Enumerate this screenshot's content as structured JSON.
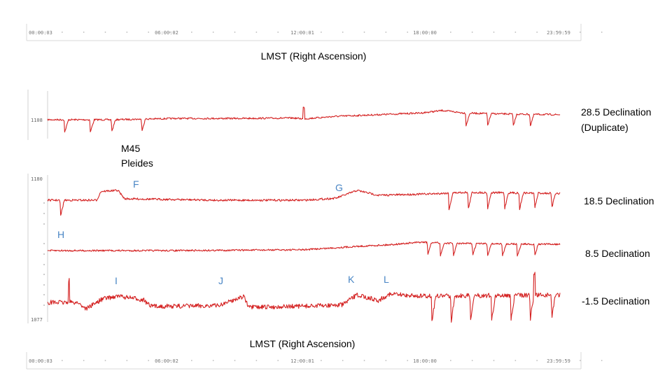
{
  "chart_data": {
    "type": "line",
    "title": "",
    "xlabel_top": "LMST (Right Ascension)",
    "xlabel_bottom": "LMST (Right Ascension)",
    "x_ticks": [
      "00:00:03",
      "06:00:02",
      "12:00:01",
      "18:00:00",
      "23:59:59"
    ],
    "x_range_hours": [
      0,
      24
    ],
    "y_tick_labels": [
      "1108",
      "1180",
      "1077"
    ],
    "grid": false,
    "color": "#d42222",
    "series": [
      {
        "name": "28.5 Declination (Duplicate)",
        "label_lines": [
          "28.5 Declination",
          "(Duplicate)"
        ],
        "points": [
          [
            0,
            0
          ],
          [
            3,
            0
          ],
          [
            6,
            0.3
          ],
          [
            9,
            0.3
          ],
          [
            11.5,
            0.4
          ],
          [
            12,
            0.2
          ],
          [
            13.5,
            0.8
          ],
          [
            15.5,
            1.2
          ],
          [
            17.5,
            1.6
          ],
          [
            18.5,
            2.2
          ],
          [
            19.5,
            1.6
          ],
          [
            21,
            1.4
          ],
          [
            24,
            1.2
          ]
        ],
        "spike_up_at": [
          12.0
        ],
        "dips_at": [
          0.8,
          2.0,
          3.0,
          4.4,
          19.6,
          20.6,
          21.8,
          22.6
        ]
      },
      {
        "name": "18.5 Declination",
        "points": [
          [
            0,
            0
          ],
          [
            2.3,
            0
          ],
          [
            2.5,
            1.8
          ],
          [
            3.3,
            2.0
          ],
          [
            3.6,
            0.3
          ],
          [
            8,
            0
          ],
          [
            12,
            0
          ],
          [
            13.5,
            0.4
          ],
          [
            14.5,
            2.0
          ],
          [
            15.5,
            1.0
          ],
          [
            18,
            1.3
          ],
          [
            19.5,
            1.6
          ],
          [
            24,
            1.4
          ]
        ],
        "dips_at": [
          0.6,
          18.8,
          19.7,
          20.6,
          21.4,
          22.1,
          22.8,
          23.6
        ]
      },
      {
        "name": "8.5 Declination",
        "points": [
          [
            0,
            0
          ],
          [
            6,
            0
          ],
          [
            12,
            0.2
          ],
          [
            14.5,
            1.0
          ],
          [
            16,
            1.4
          ],
          [
            17.5,
            2.0
          ],
          [
            19,
            1.7
          ],
          [
            24,
            1.5
          ]
        ],
        "dips_at": [
          17.8,
          18.4,
          19.0,
          19.9,
          20.6,
          21.3,
          22.0,
          22.8
        ]
      },
      {
        "name": "-1.5 Declination",
        "points": [
          [
            0,
            0
          ],
          [
            1.4,
            0
          ],
          [
            1.8,
            -1.0
          ],
          [
            2.6,
            0.6
          ],
          [
            3.3,
            1.0
          ],
          [
            4.5,
            0.4
          ],
          [
            4.8,
            -0.6
          ],
          [
            6,
            -0.6
          ],
          [
            8,
            -0.5
          ],
          [
            8.8,
            0.5
          ],
          [
            9.2,
            1.0
          ],
          [
            9.4,
            -0.8
          ],
          [
            12,
            -0.6
          ],
          [
            13.8,
            -0.4
          ],
          [
            14.5,
            1.2
          ],
          [
            15.5,
            0.3
          ],
          [
            16,
            1.3
          ],
          [
            17.5,
            1.0
          ],
          [
            24,
            1.2
          ]
        ],
        "spike_up_at": [
          1.0,
          22.8
        ],
        "dips_at": [
          18.0,
          18.9,
          19.8,
          20.8,
          21.7,
          22.6,
          23.6
        ]
      }
    ],
    "annotations": {
      "group_label": [
        "M45",
        "Pleides"
      ],
      "markers": [
        {
          "text": "F",
          "x_hours": 3.0,
          "row": 1
        },
        {
          "text": "G",
          "x_hours": 13.8,
          "row": 1
        },
        {
          "text": "H",
          "x_hours": 0.4,
          "row": 2
        },
        {
          "text": "I",
          "x_hours": 3.9,
          "row": 3
        },
        {
          "text": "J",
          "x_hours": 8.8,
          "row": 3
        },
        {
          "text": "K",
          "x_hours": 14.4,
          "row": 3
        },
        {
          "text": "L",
          "x_hours": 16.0,
          "row": 3
        }
      ]
    }
  }
}
